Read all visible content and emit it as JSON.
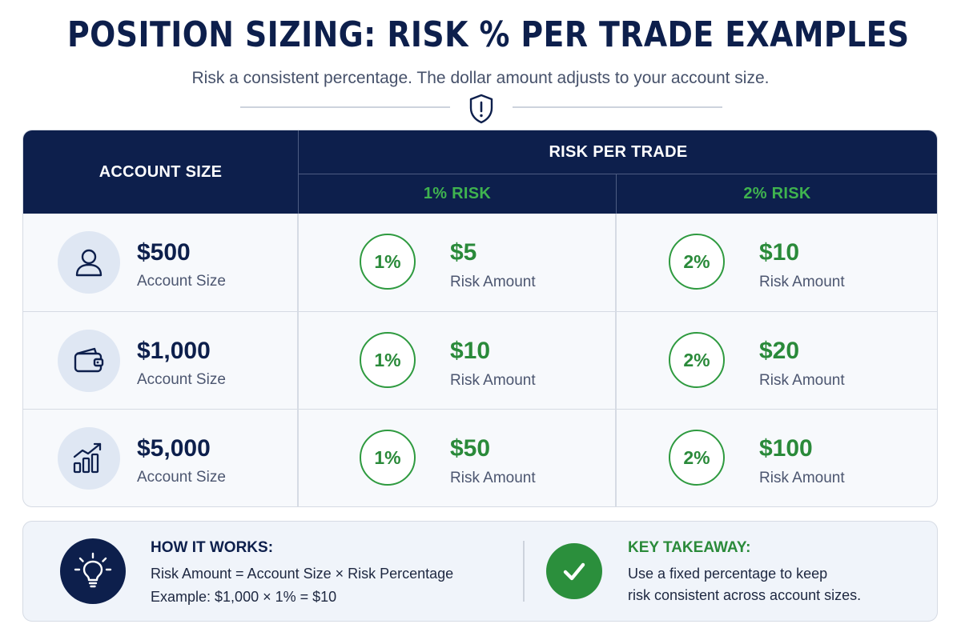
{
  "title": "POSITION SIZING: RISK % PER TRADE EXAMPLES",
  "subtitle": "Risk a consistent percentage. The dollar amount adjusts to your account size.",
  "divider_icon": "shield-alert-icon",
  "table": {
    "header_account": "ACCOUNT SIZE",
    "header_risk": "RISK PER TRADE",
    "header_col1": "1% RISK",
    "header_col2": "2% RISK",
    "rows": [
      {
        "icon": "user-icon",
        "account": "$500",
        "account_label": "Account Size",
        "risk1_pct": "1%",
        "risk1_amount": "$5",
        "risk1_label": "Risk Amount",
        "risk2_pct": "2%",
        "risk2_amount": "$10",
        "risk2_label": "Risk Amount"
      },
      {
        "icon": "wallet-icon",
        "account": "$1,000",
        "account_label": "Account Size",
        "risk1_pct": "1%",
        "risk1_amount": "$10",
        "risk1_label": "Risk Amount",
        "risk2_pct": "2%",
        "risk2_amount": "$20",
        "risk2_label": "Risk Amount"
      },
      {
        "icon": "growth-chart-icon",
        "account": "$5,000",
        "account_label": "Account Size",
        "risk1_pct": "1%",
        "risk1_amount": "$50",
        "risk1_label": "Risk Amount",
        "risk2_pct": "2%",
        "risk2_amount": "$100",
        "risk2_label": "Risk Amount"
      }
    ]
  },
  "how_it_works": {
    "icon": "lightbulb-icon",
    "title": "HOW IT WORKS:",
    "line1": "Risk Amount = Account Size × Risk Percentage",
    "line2": "Example: $1,000 × 1% = $10"
  },
  "key_takeaway": {
    "icon": "checkmark-icon",
    "title": "KEY TAKEAWAY:",
    "line1": "Use a fixed percentage to keep",
    "line2": "risk consistent across account sizes."
  },
  "colors": {
    "navy": "#0d1f4c",
    "green": "#2a8a3a",
    "header_green": "#3fb34f"
  }
}
